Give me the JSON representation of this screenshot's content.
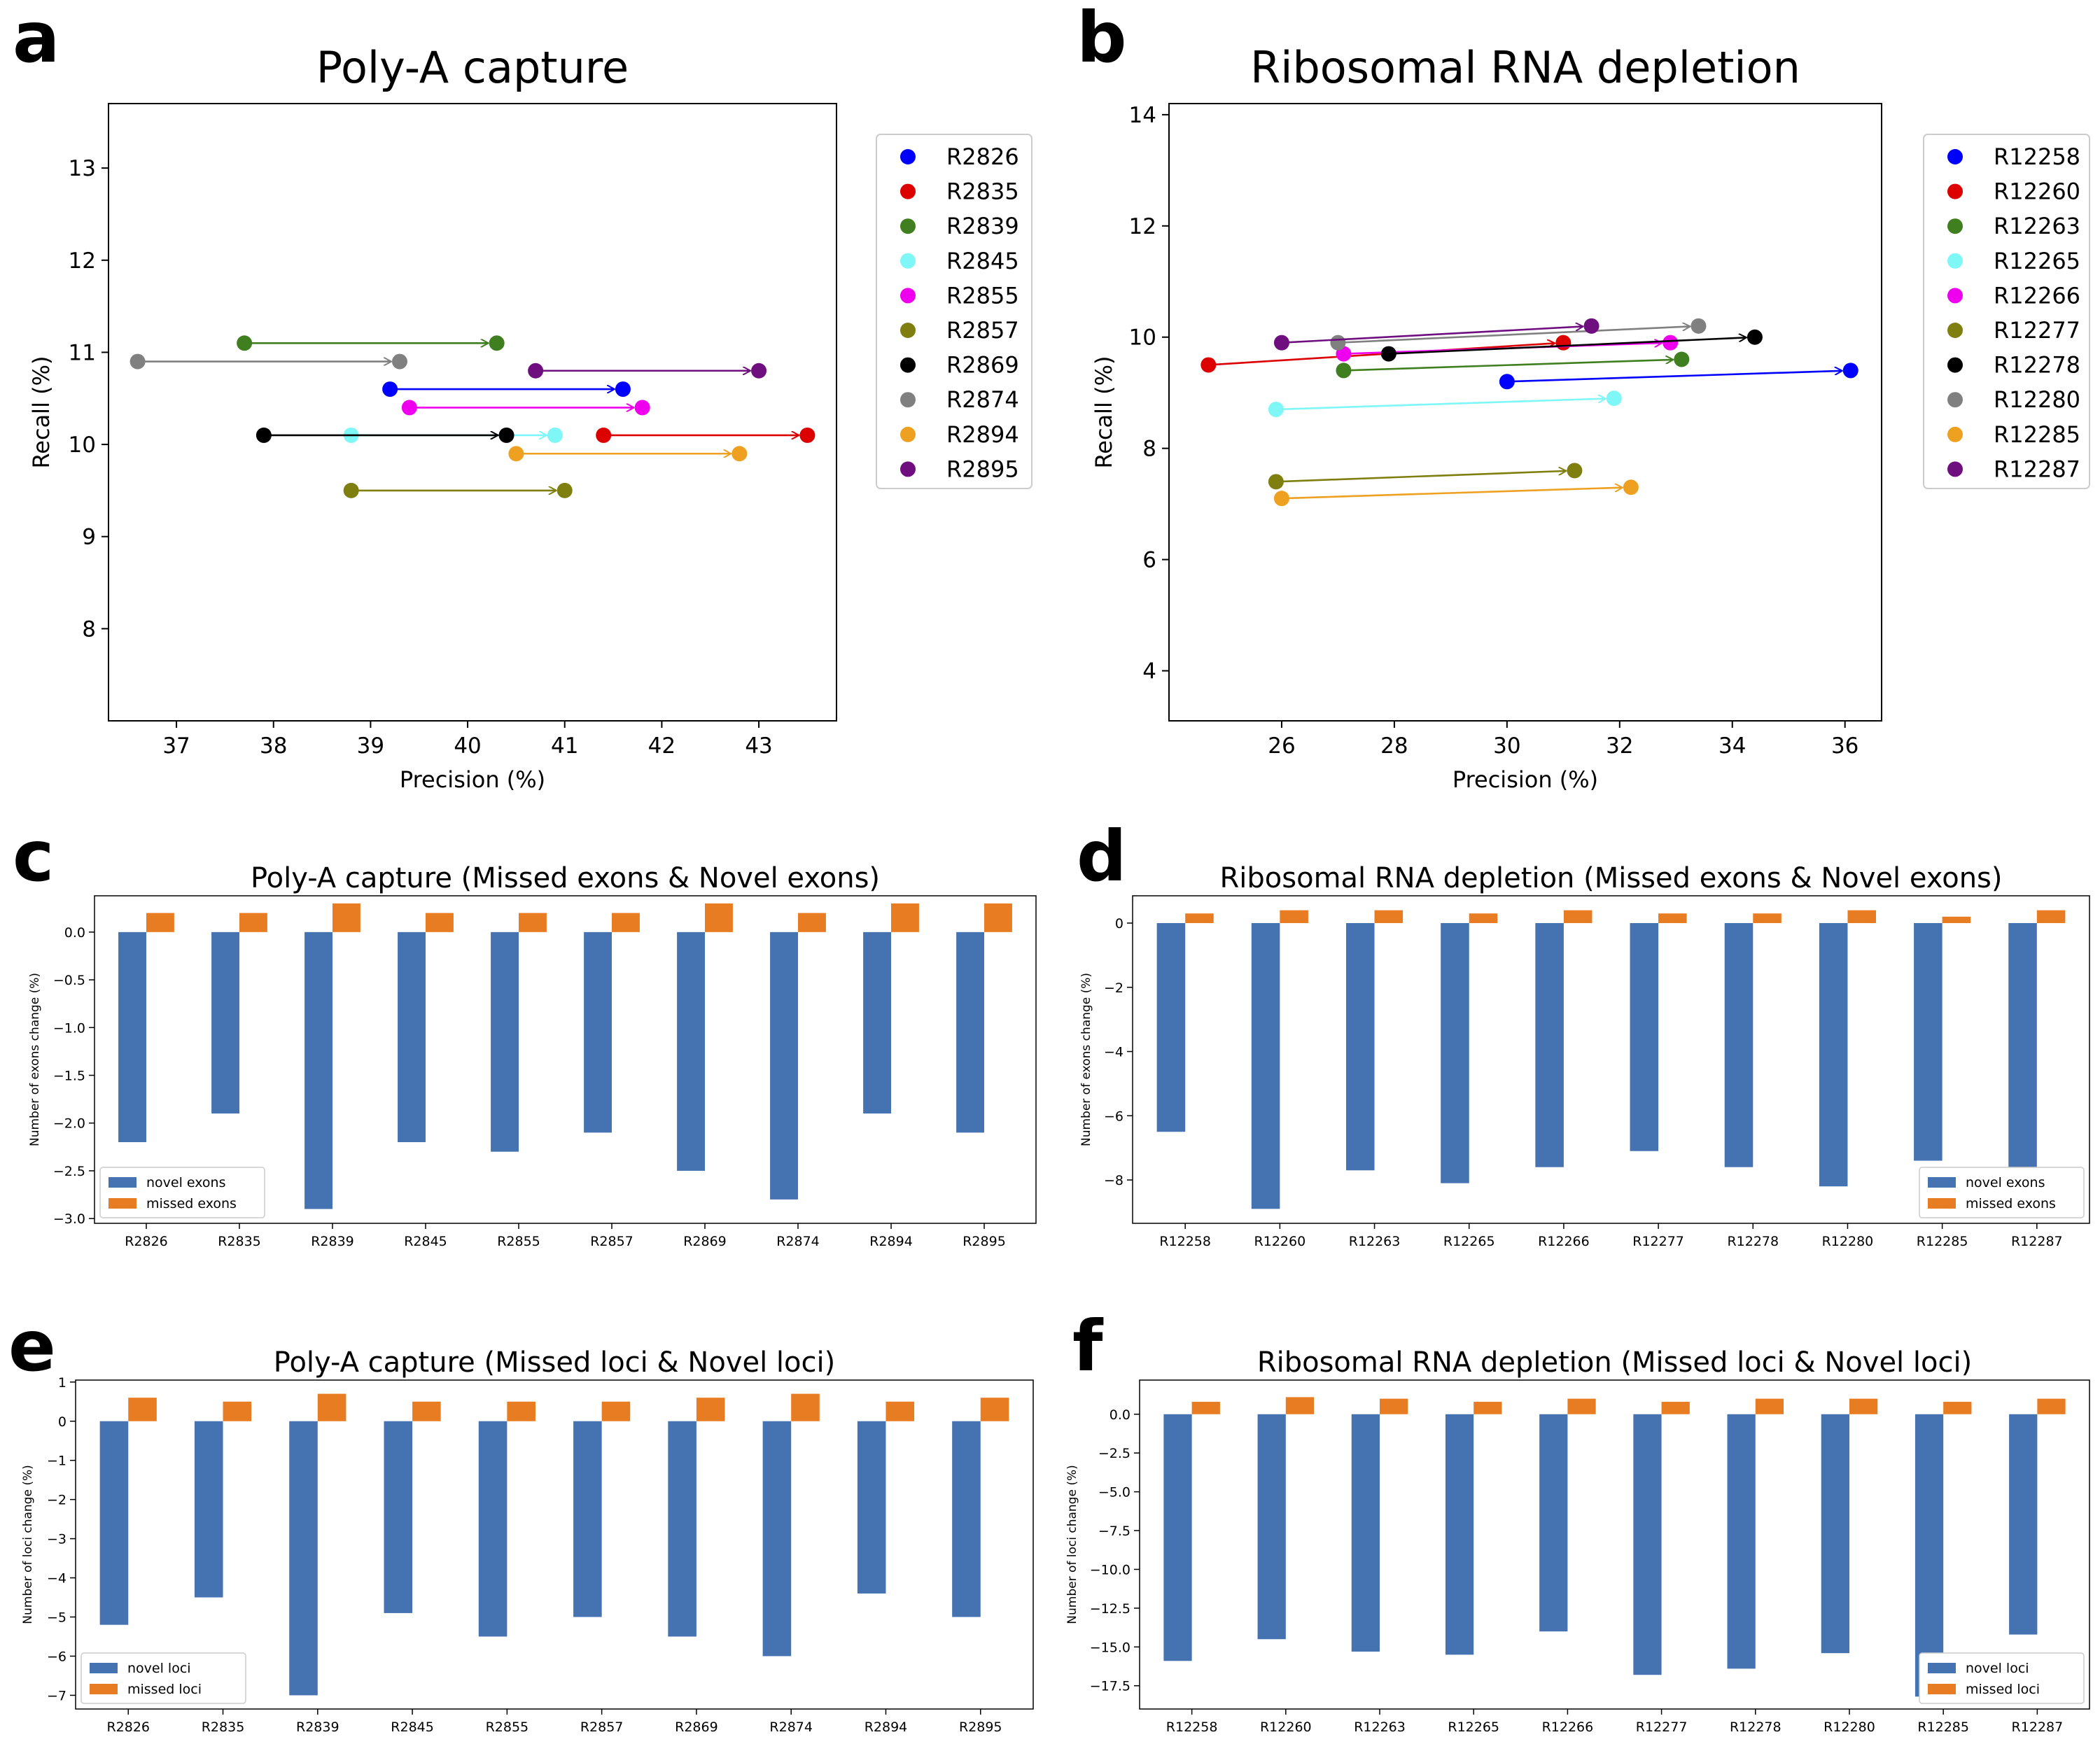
{
  "panel_letters": [
    "a",
    "b",
    "c",
    "d",
    "e",
    "f"
  ],
  "colors": {
    "novel": "#4573b1",
    "missed": "#e87c22"
  },
  "chart_data": [
    {
      "id": "a",
      "type": "scatter",
      "title": "Poly-A capture",
      "xlabel": "Precision (%)",
      "ylabel": "Recall (%)",
      "xlim": [
        36.3,
        43.8
      ],
      "ylim": [
        7.0,
        13.7
      ],
      "xticks": [
        "37",
        "38",
        "39",
        "40",
        "41",
        "42",
        "43"
      ],
      "yticks": [
        "8",
        "9",
        "10",
        "11",
        "12",
        "13"
      ],
      "legend_position": "outside right",
      "series": [
        {
          "name": "R2826",
          "color": "#0000ff",
          "from": [
            39.2,
            10.6
          ],
          "to": [
            41.6,
            10.6
          ]
        },
        {
          "name": "R2835",
          "color": "#dd0000",
          "from": [
            41.4,
            10.1
          ],
          "to": [
            43.5,
            10.1
          ]
        },
        {
          "name": "R2839",
          "color": "#3f7f1f",
          "from": [
            37.7,
            11.1
          ],
          "to": [
            40.3,
            11.1
          ]
        },
        {
          "name": "R2845",
          "color": "#7ff7f7",
          "from": [
            38.8,
            10.1
          ],
          "to": [
            40.9,
            10.1
          ]
        },
        {
          "name": "R2855",
          "color": "#ee00ee",
          "from": [
            39.4,
            10.4
          ],
          "to": [
            41.8,
            10.4
          ]
        },
        {
          "name": "R2857",
          "color": "#7f7f10",
          "from": [
            38.8,
            9.5
          ],
          "to": [
            41.0,
            9.5
          ]
        },
        {
          "name": "R2869",
          "color": "#000000",
          "from": [
            37.9,
            10.1
          ],
          "to": [
            40.4,
            10.1
          ]
        },
        {
          "name": "R2874",
          "color": "#808080",
          "from": [
            36.6,
            10.9
          ],
          "to": [
            39.3,
            10.9
          ]
        },
        {
          "name": "R2894",
          "color": "#eea020",
          "from": [
            40.5,
            9.9
          ],
          "to": [
            42.8,
            9.9
          ]
        },
        {
          "name": "R2895",
          "color": "#6f0f7f",
          "from": [
            40.7,
            10.8
          ],
          "to": [
            43.0,
            10.8
          ]
        }
      ]
    },
    {
      "id": "b",
      "type": "scatter",
      "title": "Ribosomal RNA depletion",
      "xlabel": "Precision (%)",
      "ylabel": "Recall (%)",
      "xlim": [
        24.0,
        36.65
      ],
      "ylim": [
        3.1,
        14.2
      ],
      "xticks": [
        "26",
        "28",
        "30",
        "32",
        "34",
        "36"
      ],
      "yticks": [
        "4",
        "6",
        "8",
        "10",
        "12",
        "14"
      ],
      "legend_position": "outside right",
      "series": [
        {
          "name": "R12258",
          "color": "#0000ff",
          "from": [
            30.0,
            9.2
          ],
          "to": [
            36.1,
            9.4
          ]
        },
        {
          "name": "R12260",
          "color": "#dd0000",
          "from": [
            24.7,
            9.5
          ],
          "to": [
            31.0,
            9.9
          ]
        },
        {
          "name": "R12263",
          "color": "#3f7f1f",
          "from": [
            27.1,
            9.4
          ],
          "to": [
            33.1,
            9.6
          ]
        },
        {
          "name": "R12265",
          "color": "#7ff7f7",
          "from": [
            25.9,
            8.7
          ],
          "to": [
            31.9,
            8.9
          ]
        },
        {
          "name": "R12266",
          "color": "#ee00ee",
          "from": [
            27.1,
            9.7
          ],
          "to": [
            32.9,
            9.9
          ]
        },
        {
          "name": "R12277",
          "color": "#7f7f10",
          "from": [
            25.9,
            7.4
          ],
          "to": [
            31.2,
            7.6
          ]
        },
        {
          "name": "R12278",
          "color": "#000000",
          "from": [
            27.9,
            9.7
          ],
          "to": [
            34.4,
            10.0
          ]
        },
        {
          "name": "R12280",
          "color": "#808080",
          "from": [
            27.0,
            9.9
          ],
          "to": [
            33.4,
            10.2
          ]
        },
        {
          "name": "R12285",
          "color": "#eea020",
          "from": [
            26.0,
            7.1
          ],
          "to": [
            32.2,
            7.3
          ]
        },
        {
          "name": "R12287",
          "color": "#6f0f7f",
          "from": [
            26.0,
            9.9
          ],
          "to": [
            31.5,
            10.2
          ]
        }
      ]
    },
    {
      "id": "c",
      "type": "bar",
      "title": "Poly-A capture (Missed exons & Novel exons)",
      "xlabel": "",
      "ylabel": "Number of exons change (%)",
      "ylim": [
        -3.05,
        0.38
      ],
      "yticks": [
        0.0,
        -0.5,
        -1.0,
        -1.5,
        -2.0,
        -2.5,
        -3.0
      ],
      "ytick_labels": [
        "0.0",
        "−0.5",
        "−1.0",
        "−1.5",
        "−2.0",
        "−2.5",
        "−3.0"
      ],
      "categories": [
        "R2826",
        "R2835",
        "R2839",
        "R2845",
        "R2855",
        "R2857",
        "R2869",
        "R2874",
        "R2894",
        "R2895"
      ],
      "legend_position": "lower left",
      "series": [
        {
          "name": "novel exons",
          "values": [
            -2.2,
            -1.9,
            -2.9,
            -2.2,
            -2.3,
            -2.1,
            -2.5,
            -2.8,
            -1.9,
            -2.1
          ]
        },
        {
          "name": "missed exons",
          "values": [
            0.2,
            0.2,
            0.3,
            0.2,
            0.2,
            0.2,
            0.3,
            0.2,
            0.3,
            0.3
          ]
        }
      ]
    },
    {
      "id": "d",
      "type": "bar",
      "title": "Ribosomal RNA depletion (Missed exons & Novel exons)",
      "xlabel": "",
      "ylabel": "Number of exons change (%)",
      "ylim": [
        -9.35,
        0.85
      ],
      "yticks": [
        0,
        -2,
        -4,
        -6,
        -8
      ],
      "ytick_labels": [
        "0",
        "−2",
        "−4",
        "−6",
        "−8"
      ],
      "categories": [
        "R12258",
        "R12260",
        "R12263",
        "R12265",
        "R12266",
        "R12277",
        "R12278",
        "R12280",
        "R12285",
        "R12287"
      ],
      "legend_position": "lower right",
      "series": [
        {
          "name": "novel exons",
          "values": [
            -6.5,
            -8.9,
            -7.7,
            -8.1,
            -7.6,
            -7.1,
            -7.6,
            -8.2,
            -7.4,
            -7.6
          ]
        },
        {
          "name": "missed exons",
          "values": [
            0.3,
            0.4,
            0.4,
            0.3,
            0.4,
            0.3,
            0.3,
            0.4,
            0.2,
            0.4
          ]
        }
      ]
    },
    {
      "id": "e",
      "type": "bar",
      "title": "Poly-A capture (Missed loci & Novel loci)",
      "xlabel": "",
      "ylabel": "Number of loci change (%)",
      "ylim": [
        -7.35,
        1.05
      ],
      "yticks": [
        1,
        0,
        -1,
        -2,
        -3,
        -4,
        -5,
        -6,
        -7
      ],
      "ytick_labels": [
        "1",
        "0",
        "−1",
        "−2",
        "−3",
        "−4",
        "−5",
        "−6",
        "−7"
      ],
      "categories": [
        "R2826",
        "R2835",
        "R2839",
        "R2845",
        "R2855",
        "R2857",
        "R2869",
        "R2874",
        "R2894",
        "R2895"
      ],
      "legend_position": "lower left",
      "series": [
        {
          "name": "novel loci",
          "values": [
            -5.2,
            -4.5,
            -7.0,
            -4.9,
            -5.5,
            -5.0,
            -5.5,
            -6.0,
            -4.4,
            -5.0
          ]
        },
        {
          "name": "missed loci",
          "values": [
            0.6,
            0.5,
            0.7,
            0.5,
            0.5,
            0.5,
            0.6,
            0.7,
            0.5,
            0.6
          ]
        }
      ]
    },
    {
      "id": "f",
      "type": "bar",
      "title": "Ribosomal RNA depletion (Missed loci & Novel loci)",
      "xlabel": "",
      "ylabel": "Number of loci change (%)",
      "ylim": [
        -19.0,
        2.2
      ],
      "yticks": [
        0.0,
        -2.5,
        -5.0,
        -7.5,
        -10.0,
        -12.5,
        -15.0,
        -17.5
      ],
      "ytick_labels": [
        "0.0",
        "−2.5",
        "−5.0",
        "−7.5",
        "−10.0",
        "−12.5",
        "−15.0",
        "−17.5"
      ],
      "categories": [
        "R12258",
        "R12260",
        "R12263",
        "R12265",
        "R12266",
        "R12277",
        "R12278",
        "R12280",
        "R12285",
        "R12287"
      ],
      "legend_position": "lower right",
      "series": [
        {
          "name": "novel loci",
          "values": [
            -15.9,
            -14.5,
            -15.3,
            -15.5,
            -14.0,
            -16.8,
            -16.4,
            -15.4,
            -18.2,
            -14.2
          ]
        },
        {
          "name": "missed loci",
          "values": [
            0.8,
            1.1,
            1.0,
            0.8,
            1.0,
            0.8,
            1.0,
            1.0,
            0.8,
            1.0
          ]
        }
      ]
    }
  ]
}
